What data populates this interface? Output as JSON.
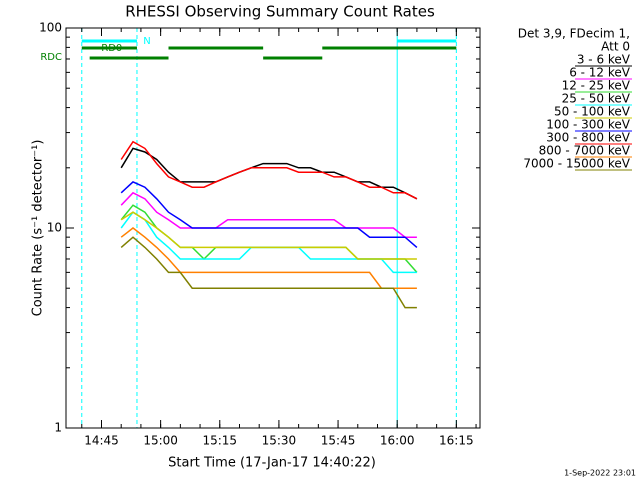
{
  "chart_data": {
    "type": "line",
    "title": "RHESSI Observing Summary Count Rates",
    "xlabel": "Start Time (17-Jan-17 14:40:22)",
    "ylabel": "Count Rate (s⁻¹ detector⁻¹)",
    "legend_title": [
      "Det 3,9, FDecim 1,",
      "Att 0"
    ],
    "footer": "1-Sep-2022 23:01",
    "log_y": true,
    "xlim": [
      "14:36",
      "16:21"
    ],
    "xticks": [
      "14:45",
      "15:00",
      "15:15",
      "15:30",
      "15:45",
      "16:00",
      "16:15"
    ],
    "ylim": [
      1,
      100
    ],
    "yticks": [
      1,
      10,
      100
    ],
    "x": [
      "14:50",
      "14:53",
      "14:56",
      "14:59",
      "15:02",
      "15:05",
      "15:08",
      "15:11",
      "15:14",
      "15:17",
      "15:20",
      "15:23",
      "15:26",
      "15:29",
      "15:32",
      "15:35",
      "15:38",
      "15:41",
      "15:44",
      "15:47",
      "15:50",
      "15:53",
      "15:56",
      "15:59",
      "16:02",
      "16:05"
    ],
    "series": [
      {
        "name": "3 - 6 keV",
        "color": "#000000",
        "values": [
          20,
          25,
          24,
          22,
          19,
          17,
          17,
          17,
          17,
          18,
          19,
          20,
          21,
          21,
          21,
          20,
          20,
          19,
          19,
          18,
          17,
          17,
          16,
          16,
          15,
          14
        ]
      },
      {
        "name": "6 - 12 keV",
        "color": "#ff00ff",
        "values": [
          13,
          15,
          14,
          12,
          11,
          10,
          10,
          10,
          10,
          11,
          11,
          11,
          11,
          11,
          11,
          11,
          11,
          11,
          11,
          10,
          10,
          10,
          10,
          10,
          9,
          9
        ]
      },
      {
        "name": "12 - 25 keV",
        "color": "#33dd33",
        "values": [
          11,
          13,
          12,
          10,
          9,
          8,
          8,
          7,
          8,
          8,
          8,
          8,
          8,
          8,
          8,
          8,
          8,
          8,
          8,
          8,
          7,
          7,
          7,
          7,
          7,
          6
        ]
      },
      {
        "name": "25 - 50 keV",
        "color": "#00ffff",
        "values": [
          10,
          12,
          11,
          9,
          8,
          7,
          7,
          7,
          7,
          7,
          7,
          8,
          8,
          8,
          8,
          8,
          7,
          7,
          7,
          7,
          7,
          7,
          7,
          6,
          6,
          6
        ]
      },
      {
        "name": "50 - 100 keV",
        "color": "#cccc00",
        "values": [
          11,
          12,
          11,
          10,
          9,
          8,
          8,
          8,
          8,
          8,
          8,
          8,
          8,
          8,
          8,
          8,
          8,
          8,
          8,
          8,
          7,
          7,
          7,
          7,
          7,
          7
        ]
      },
      {
        "name": "100 - 300 keV",
        "color": "#0000ff",
        "values": [
          15,
          17,
          16,
          14,
          12,
          11,
          10,
          10,
          10,
          10,
          10,
          10,
          10,
          10,
          10,
          10,
          10,
          10,
          10,
          10,
          10,
          9,
          9,
          9,
          9,
          8
        ]
      },
      {
        "name": "300 - 800 keV",
        "color": "#ff0000",
        "values": [
          22,
          27,
          25,
          21,
          18,
          17,
          16,
          16,
          17,
          18,
          19,
          20,
          20,
          20,
          20,
          19,
          19,
          19,
          18,
          18,
          17,
          16,
          16,
          15,
          15,
          14
        ]
      },
      {
        "name": "800 - 7000 keV",
        "color": "#ff8000",
        "values": [
          9,
          10,
          9,
          8,
          7,
          6,
          6,
          6,
          6,
          6,
          6,
          6,
          6,
          6,
          6,
          6,
          6,
          6,
          6,
          6,
          6,
          6,
          5,
          5,
          5,
          5
        ]
      },
      {
        "name": "7000 - 15000 keV",
        "color": "#808000",
        "values": [
          8,
          9,
          8,
          7,
          6,
          6,
          5,
          5,
          5,
          5,
          5,
          5,
          5,
          5,
          5,
          5,
          5,
          5,
          5,
          5,
          5,
          5,
          5,
          5,
          4,
          4
        ]
      }
    ],
    "flags": [
      {
        "label": "N",
        "color": "#00ffff",
        "intervals": [
          [
            "14:40",
            "14:54"
          ],
          [
            "16:00",
            "16:15"
          ]
        ]
      },
      {
        "label": "RD0",
        "color": "#008000",
        "intervals": [
          [
            "14:40",
            "14:54"
          ],
          [
            "15:02",
            "15:26"
          ],
          [
            "15:41",
            "16:15"
          ]
        ]
      },
      {
        "label": "RDC",
        "color": "#008000",
        "intervals": [
          [
            "14:42",
            "15:02"
          ],
          [
            "15:26",
            "15:41"
          ]
        ]
      }
    ]
  }
}
